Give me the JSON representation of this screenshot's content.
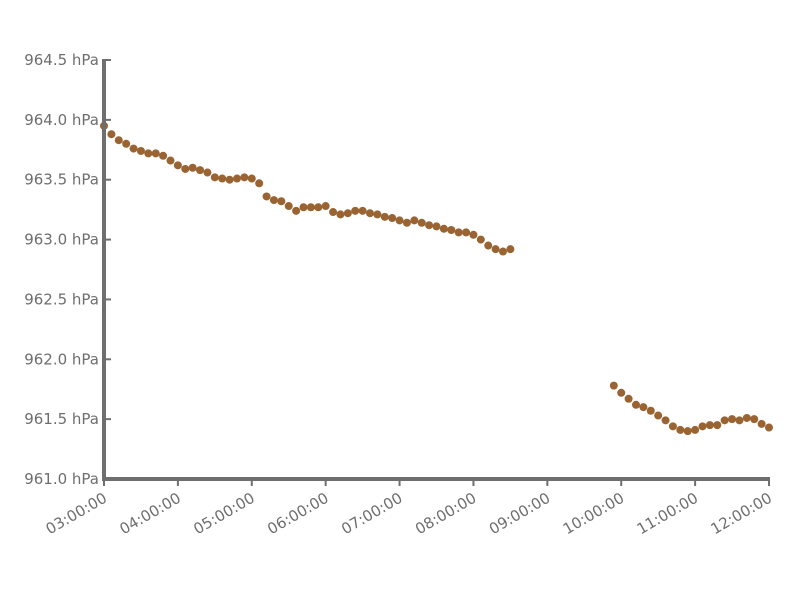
{
  "chart_data": {
    "type": "scatter",
    "title": "",
    "xlabel": "",
    "ylabel": "",
    "x_tick_labels": [
      "03:00:00",
      "04:00:00",
      "05:00:00",
      "06:00:00",
      "07:00:00",
      "08:00:00",
      "09:00:00",
      "10:00:00",
      "11:00:00",
      "12:00:00"
    ],
    "y_tick_labels": [
      "961.0 hPa",
      "961.5 hPa",
      "962.0 hPa",
      "962.5 hPa",
      "963.0 hPa",
      "963.5 hPa",
      "964.0 hPa",
      "964.5 hPa"
    ],
    "xlim": [
      "03:00",
      "12:00"
    ],
    "ylim": [
      961.0,
      964.5
    ],
    "y_unit": "hPa",
    "grid": false,
    "colors": {
      "points": "#9a6332",
      "axis": "#6e6e6e",
      "text": "#6e6e6e"
    },
    "series": [
      {
        "points": [
          [
            "03:00",
            963.95
          ],
          [
            "03:06",
            963.88
          ],
          [
            "03:12",
            963.83
          ],
          [
            "03:18",
            963.8
          ],
          [
            "03:24",
            963.76
          ],
          [
            "03:30",
            963.74
          ],
          [
            "03:36",
            963.72
          ],
          [
            "03:42",
            963.72
          ],
          [
            "03:48",
            963.7
          ],
          [
            "03:54",
            963.66
          ],
          [
            "04:00",
            963.62
          ],
          [
            "04:06",
            963.59
          ],
          [
            "04:12",
            963.6
          ],
          [
            "04:18",
            963.58
          ],
          [
            "04:24",
            963.56
          ],
          [
            "04:30",
            963.52
          ],
          [
            "04:36",
            963.51
          ],
          [
            "04:42",
            963.5
          ],
          [
            "04:48",
            963.51
          ],
          [
            "04:54",
            963.52
          ],
          [
            "05:00",
            963.51
          ],
          [
            "05:06",
            963.47
          ],
          [
            "05:12",
            963.36
          ],
          [
            "05:18",
            963.33
          ],
          [
            "05:24",
            963.32
          ],
          [
            "05:30",
            963.28
          ],
          [
            "05:36",
            963.24
          ],
          [
            "05:42",
            963.27
          ],
          [
            "05:48",
            963.27
          ],
          [
            "05:54",
            963.27
          ],
          [
            "06:00",
            963.28
          ],
          [
            "06:06",
            963.23
          ],
          [
            "06:12",
            963.21
          ],
          [
            "06:18",
            963.22
          ],
          [
            "06:24",
            963.24
          ],
          [
            "06:30",
            963.24
          ],
          [
            "06:36",
            963.22
          ],
          [
            "06:42",
            963.21
          ],
          [
            "06:48",
            963.19
          ],
          [
            "06:54",
            963.18
          ],
          [
            "07:00",
            963.16
          ],
          [
            "07:06",
            963.14
          ],
          [
            "07:12",
            963.16
          ],
          [
            "07:18",
            963.14
          ],
          [
            "07:24",
            963.12
          ],
          [
            "07:30",
            963.11
          ],
          [
            "07:36",
            963.09
          ],
          [
            "07:42",
            963.08
          ],
          [
            "07:48",
            963.06
          ],
          [
            "07:54",
            963.06
          ],
          [
            "08:00",
            963.04
          ],
          [
            "08:06",
            963.0
          ],
          [
            "08:12",
            962.95
          ],
          [
            "08:18",
            962.92
          ],
          [
            "08:24",
            962.9
          ],
          [
            "08:30",
            962.92
          ],
          [
            "09:54",
            961.78
          ],
          [
            "10:00",
            961.72
          ],
          [
            "10:06",
            961.67
          ],
          [
            "10:12",
            961.62
          ],
          [
            "10:18",
            961.6
          ],
          [
            "10:24",
            961.57
          ],
          [
            "10:30",
            961.53
          ],
          [
            "10:36",
            961.49
          ],
          [
            "10:42",
            961.44
          ],
          [
            "10:48",
            961.41
          ],
          [
            "10:54",
            961.4
          ],
          [
            "11:00",
            961.41
          ],
          [
            "11:06",
            961.44
          ],
          [
            "11:12",
            961.45
          ],
          [
            "11:18",
            961.45
          ],
          [
            "11:24",
            961.49
          ],
          [
            "11:30",
            961.5
          ],
          [
            "11:36",
            961.49
          ],
          [
            "11:42",
            961.51
          ],
          [
            "11:48",
            961.5
          ],
          [
            "11:54",
            961.46
          ],
          [
            "12:00",
            961.43
          ]
        ]
      }
    ]
  }
}
